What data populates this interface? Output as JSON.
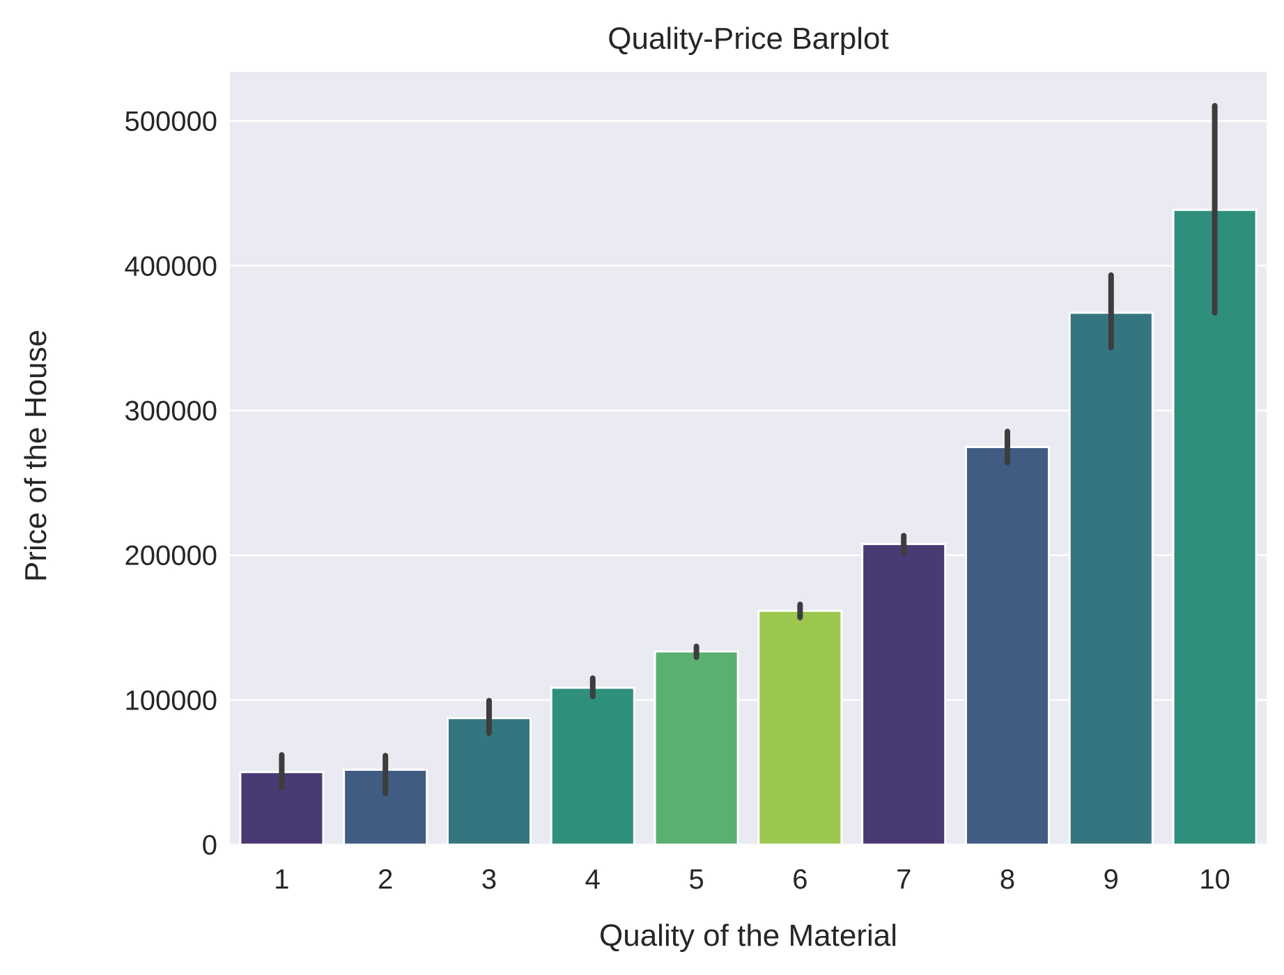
{
  "chart_data": {
    "type": "bar",
    "title": "Quality-Price Barplot",
    "xlabel": "Quality of the Material",
    "ylabel": "Price of the House",
    "categories": [
      "1",
      "2",
      "3",
      "4",
      "5",
      "6",
      "7",
      "8",
      "9",
      "10"
    ],
    "values": [
      50150,
      51770,
      87470,
      108420,
      133520,
      161600,
      207720,
      274740,
      367510,
      438590
    ],
    "error_low": [
      39500,
      35500,
      77000,
      102500,
      129500,
      157000,
      201500,
      264000,
      343500,
      367500
    ],
    "error_high": [
      62000,
      61500,
      99500,
      115000,
      137000,
      166000,
      213500,
      285500,
      393500,
      510500
    ],
    "ylim": [
      0,
      534000
    ],
    "yticks": [
      0,
      100000,
      200000,
      300000,
      400000,
      500000
    ],
    "grid": true,
    "colors": [
      "#4a3a73",
      "#415c82",
      "#357580",
      "#2f8f7d",
      "#5ab071",
      "#9bc74f",
      "#4a3a73",
      "#415c82",
      "#357580",
      "#2f8f7d"
    ],
    "plot_background": "#eaeaf2",
    "error_color": "#3d3d3d"
  }
}
